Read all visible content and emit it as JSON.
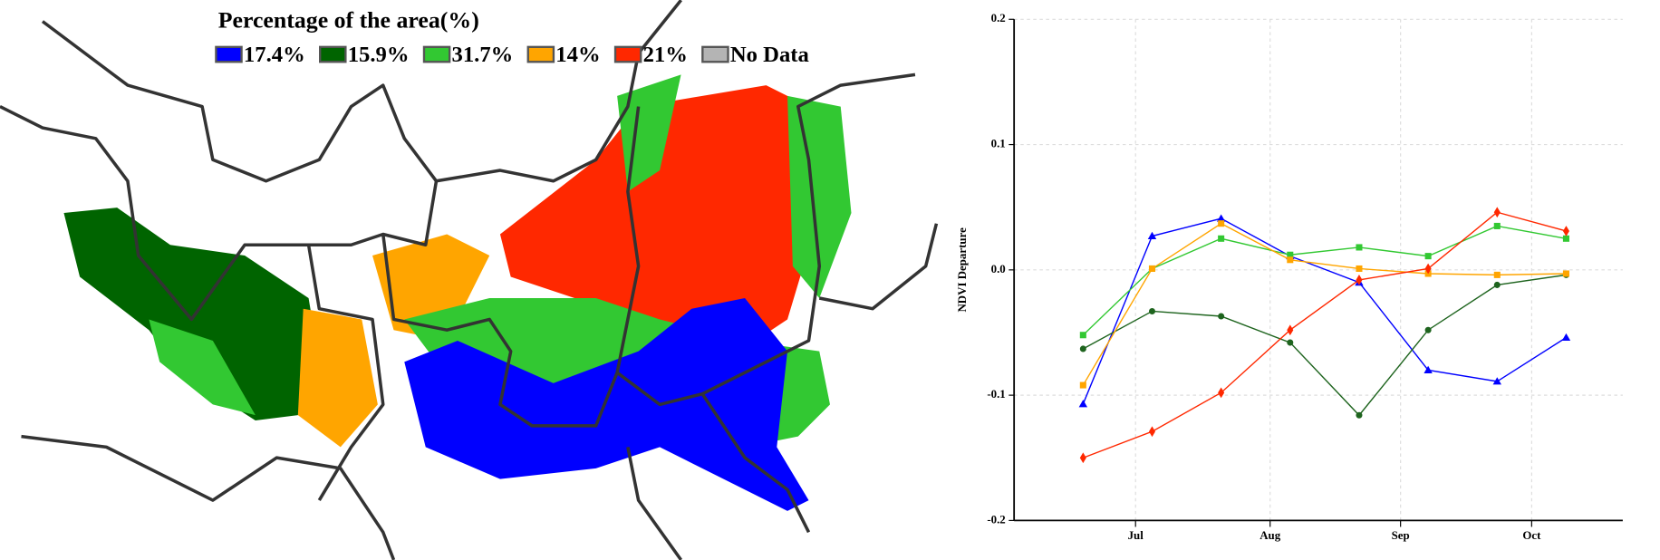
{
  "map": {
    "title": "Percentage of the area(%)",
    "legend": [
      {
        "label": "17.4%",
        "color": "#0000ff"
      },
      {
        "label": "15.9%",
        "color": "#006400"
      },
      {
        "label": "31.7%",
        "color": "#32c832"
      },
      {
        "label": "14%",
        "color": "#ffa500"
      },
      {
        "label": "21%",
        "color": "#ff2800"
      },
      {
        "label": "No Data",
        "color": "#b4b4b4"
      }
    ]
  },
  "chart_data": {
    "type": "line",
    "y_label": "NDVI Departure",
    "x": [
      1,
      2,
      3,
      4,
      5,
      6,
      7,
      8
    ],
    "xlim": [
      0,
      8.82
    ],
    "xticks": [
      {
        "value": 1.76,
        "label": "Jul"
      },
      {
        "value": 3.71,
        "label": "Aug"
      },
      {
        "value": 5.6,
        "label": "Sep"
      },
      {
        "value": 7.5,
        "label": "Oct"
      }
    ],
    "ylim": [
      -0.2,
      0.2
    ],
    "yticks": [
      -0.2,
      -0.1,
      {
        "value": 0,
        "label": "0.0"
      },
      0.1,
      0.2
    ],
    "grid": true,
    "series": [
      {
        "color": "#0000ff",
        "marker": "triangle",
        "values": [
          -0.107,
          0.027,
          0.041,
          0.011,
          -0.01,
          -0.08,
          -0.089,
          -0.054
        ]
      },
      {
        "color": "#1e641e",
        "marker": "circle",
        "values": [
          -0.063,
          -0.033,
          -0.037,
          -0.058,
          -0.116,
          -0.048,
          -0.012,
          -0.004
        ]
      },
      {
        "color": "#32c832",
        "marker": "square",
        "values": [
          -0.052,
          0.001,
          0.025,
          0.012,
          0.018,
          0.011,
          0.035,
          0.025
        ]
      },
      {
        "color": "#ffa500",
        "marker": "square",
        "values": [
          -0.092,
          0.001,
          0.037,
          0.008,
          0.001,
          -0.003,
          -0.004,
          -0.003
        ]
      },
      {
        "color": "#ff2800",
        "marker": "diamond",
        "values": [
          -0.15,
          -0.129,
          -0.098,
          -0.048,
          -0.008,
          0.001,
          0.046,
          0.031
        ]
      }
    ]
  }
}
